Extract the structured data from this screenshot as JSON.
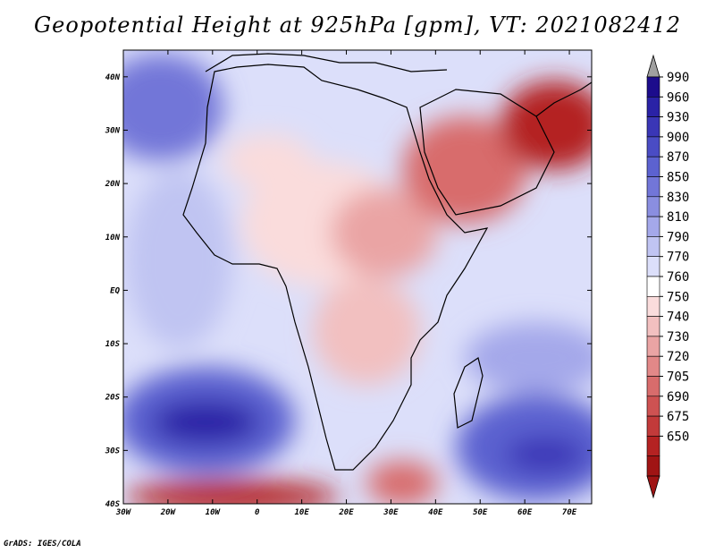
{
  "title": "Geopotential Height at 925hPa [gpm], VT: 2021082412",
  "credit": "GrADS: IGES/COLA",
  "map": {
    "variable": "Geopotential Height",
    "level": "925hPa",
    "units": "gpm",
    "valid_time": "2021082412",
    "lon_range": [
      -30,
      75
    ],
    "lat_range": [
      -40,
      45
    ],
    "lon_ticks": [
      "30W",
      "20W",
      "10W",
      "0",
      "10E",
      "20E",
      "30E",
      "40E",
      "50E",
      "60E",
      "70E"
    ],
    "lat_ticks": [
      "40N",
      "30N",
      "20N",
      "10N",
      "EQ",
      "10S",
      "20S",
      "30S",
      "40S"
    ]
  },
  "colorbar": {
    "levels": [
      "990",
      "960",
      "930",
      "900",
      "870",
      "850",
      "830",
      "810",
      "790",
      "770",
      "760",
      "750",
      "740",
      "730",
      "720",
      "705",
      "690",
      "675",
      "650"
    ],
    "colors": [
      "#1c0c8c",
      "#2a22a6",
      "#3a36b6",
      "#4a4cc4",
      "#5c62d0",
      "#7276d8",
      "#8a8ee0",
      "#a4a8ea",
      "#c0c4f2",
      "#dcdffa",
      "#ffffff",
      "#fadcdc",
      "#f2c0c0",
      "#eaa4a4",
      "#e28888",
      "#d86c6c",
      "#ce5252",
      "#c23a3a",
      "#b42222",
      "#a01414"
    ],
    "over_arrow_color": "#a0a0a0"
  }
}
